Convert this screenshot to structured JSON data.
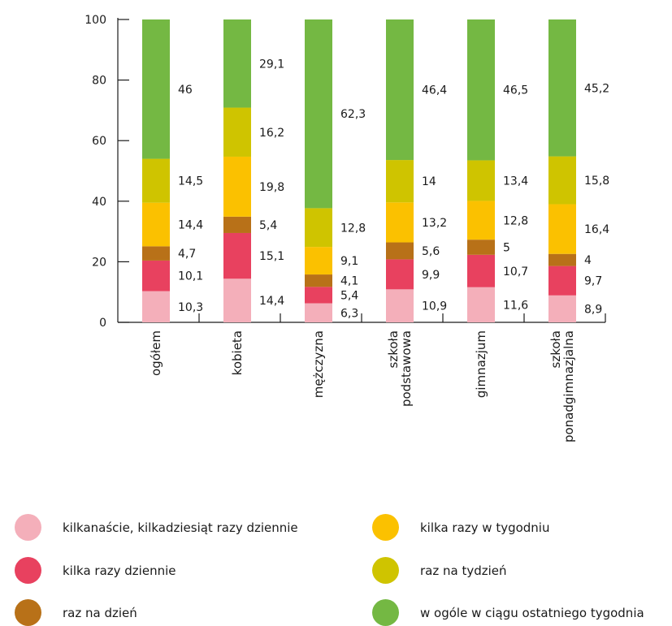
{
  "chart_data": {
    "type": "bar",
    "stacked": true,
    "categories": [
      "ogółem",
      "kobieta",
      "mężczyzna",
      "szkoła podstawowa",
      "gimnazjum",
      "szkoła ponadgimnazjalna"
    ],
    "category_lines": [
      [
        "ogółem"
      ],
      [
        "kobieta"
      ],
      [
        "mężczyzna"
      ],
      [
        "szkoła",
        "podstawowa"
      ],
      [
        "gimnazjum"
      ],
      [
        "szkoła",
        "ponadgimnazjalna"
      ]
    ],
    "series": [
      {
        "name": "kilkanaście, kilkadziesiąt razy dziennie",
        "color": "#F4AFBA",
        "values": [
          10.3,
          14.4,
          6.3,
          10.9,
          11.6,
          8.9
        ]
      },
      {
        "name": "kilka razy dziennie",
        "color": "#E8415F",
        "values": [
          10.1,
          15.1,
          5.4,
          9.9,
          10.7,
          9.7
        ]
      },
      {
        "name": "raz na dzień",
        "color": "#B87118",
        "values": [
          4.7,
          5.4,
          4.1,
          5.6,
          5,
          4
        ]
      },
      {
        "name": "kilka razy w tygodniu",
        "color": "#FBC100",
        "values": [
          14.4,
          19.8,
          9.1,
          13.2,
          12.8,
          16.4
        ]
      },
      {
        "name": "raz na tydzień",
        "color": "#CFC400",
        "values": [
          14.5,
          16.2,
          12.8,
          14,
          13.4,
          15.8
        ]
      },
      {
        "name": "w ogóle w ciągu ostatniego tygodnia",
        "color": "#74B843",
        "values": [
          46,
          29.1,
          62.3,
          46.4,
          46.5,
          45.2
        ]
      }
    ],
    "value_labels": [
      [
        "10,3",
        "10,1",
        "4,7",
        "14,4",
        "14,5",
        "46"
      ],
      [
        "14,4",
        "15,1",
        "5,4",
        "19,8",
        "16,2",
        "29,1"
      ],
      [
        "6,3",
        "5,4",
        "4,1",
        "9,1",
        "12,8",
        "62,3"
      ],
      [
        "10,9",
        "9,9",
        "5,6",
        "13,2",
        "14",
        "46,4"
      ],
      [
        "11,6",
        "10,7",
        "5",
        "12,8",
        "13,4",
        "46,5"
      ],
      [
        "8,9",
        "9,7",
        "4",
        "16,4",
        "15,8",
        "45,2"
      ]
    ],
    "yticks": [
      "0",
      "20",
      "40",
      "60",
      "80",
      "100"
    ],
    "ylim": [
      0,
      100
    ],
    "xlabel": "",
    "ylabel": "",
    "legend_position": "bottom"
  }
}
